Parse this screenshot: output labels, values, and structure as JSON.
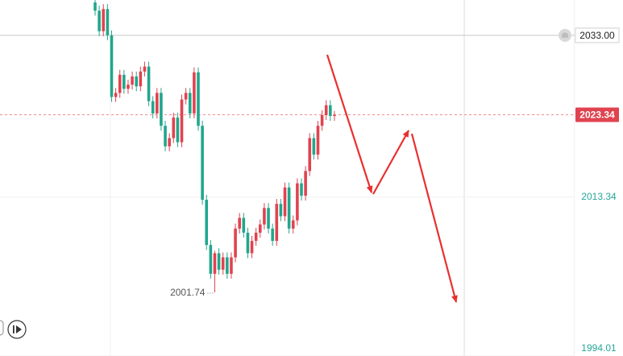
{
  "chart_data": {
    "type": "candlestick",
    "up_color": "#e0434f",
    "down_color": "#22a68c",
    "ylim": [
      1994.0,
      2037.3
    ],
    "yticks": [
      {
        "value": 2033.0,
        "label": "2033.00"
      },
      2013.34,
      1994.01
    ],
    "last_price": 2023.34,
    "low_label": 2001.74,
    "open": [
      2037.0,
      2036.0,
      2033.5,
      2036.2,
      2033.0,
      2025.5,
      2026.0,
      2028.2,
      2026.5,
      2027.0,
      2028.0,
      2026.8,
      2028.6,
      2029.2,
      2025.0,
      2023.5,
      2026.0,
      2022.0,
      2019.5,
      2020.5,
      2023.0,
      2020.0,
      2025.2,
      2026.0,
      2023.5,
      2028.5,
      2022.0,
      2013.0,
      2007.5,
      2004.0,
      2006.5,
      2004.5,
      2006.0,
      2004.0,
      2006.0,
      2009.5,
      2010.8,
      2009.0,
      2006.5,
      2008.0,
      2009.0,
      2010.0,
      2012.0,
      2009.5,
      2008.0,
      2012.5,
      2011.0,
      2014.5,
      2009.5,
      2010.5,
      2015.0,
      2013.5,
      2016.5,
      2020.5,
      2018.5,
      2022.0,
      2023.3,
      2024.5,
      2023.2
    ],
    "high": [
      2037.6,
      2036.6,
      2036.8,
      2036.8,
      2033.6,
      2026.6,
      2028.8,
      2028.8,
      2027.6,
      2028.6,
      2028.6,
      2029.2,
      2029.8,
      2029.8,
      2025.6,
      2026.6,
      2026.6,
      2022.6,
      2021.1,
      2023.6,
      2023.6,
      2025.8,
      2026.6,
      2026.6,
      2029.1,
      2029.1,
      2022.6,
      2013.6,
      2008.1,
      2006.8,
      2007.1,
      2006.6,
      2006.6,
      2006.6,
      2010.1,
      2011.4,
      2011.4,
      2009.6,
      2008.6,
      2009.6,
      2010.6,
      2012.6,
      2012.6,
      2010.1,
      2013.1,
      2013.1,
      2015.1,
      2015.1,
      2011.1,
      2015.6,
      2015.6,
      2017.1,
      2021.1,
      2021.1,
      2022.6,
      2023.9,
      2025.1,
      2025.1,
      2023.8
    ],
    "low": [
      2035.4,
      2032.9,
      2032.9,
      2032.4,
      2024.9,
      2024.9,
      2025.4,
      2025.9,
      2025.9,
      2026.4,
      2026.2,
      2026.2,
      2028.0,
      2024.4,
      2022.9,
      2022.9,
      2021.4,
      2018.9,
      2018.9,
      2019.9,
      2019.4,
      2019.4,
      2024.6,
      2022.9,
      2022.9,
      2021.4,
      2012.4,
      2006.9,
      2003.4,
      2001.74,
      2003.9,
      2003.9,
      2003.4,
      2003.4,
      2005.4,
      2008.9,
      2008.4,
      2005.9,
      2005.9,
      2007.4,
      2008.4,
      2009.4,
      2008.9,
      2007.4,
      2007.4,
      2010.4,
      2010.4,
      2008.9,
      2008.9,
      2009.9,
      2012.9,
      2012.9,
      2015.9,
      2017.9,
      2017.9,
      2021.4,
      2022.7,
      2022.6,
      2022.6
    ],
    "close": [
      2036.0,
      2033.5,
      2036.2,
      2033.0,
      2025.5,
      2026.0,
      2028.2,
      2026.5,
      2027.0,
      2028.0,
      2026.8,
      2028.6,
      2029.2,
      2025.0,
      2023.5,
      2026.0,
      2022.0,
      2019.5,
      2020.5,
      2023.0,
      2020.0,
      2025.2,
      2026.0,
      2023.5,
      2028.5,
      2022.0,
      2013.0,
      2007.5,
      2004.0,
      2006.5,
      2004.5,
      2006.0,
      2004.0,
      2006.0,
      2009.5,
      2010.8,
      2009.0,
      2006.5,
      2008.0,
      2009.0,
      2010.0,
      2012.0,
      2009.5,
      2008.0,
      2012.5,
      2011.0,
      2014.5,
      2009.5,
      2010.5,
      2015.0,
      2013.5,
      2016.5,
      2020.5,
      2018.5,
      2022.0,
      2023.3,
      2024.5,
      2023.2,
      2023.34
    ]
  }
}
